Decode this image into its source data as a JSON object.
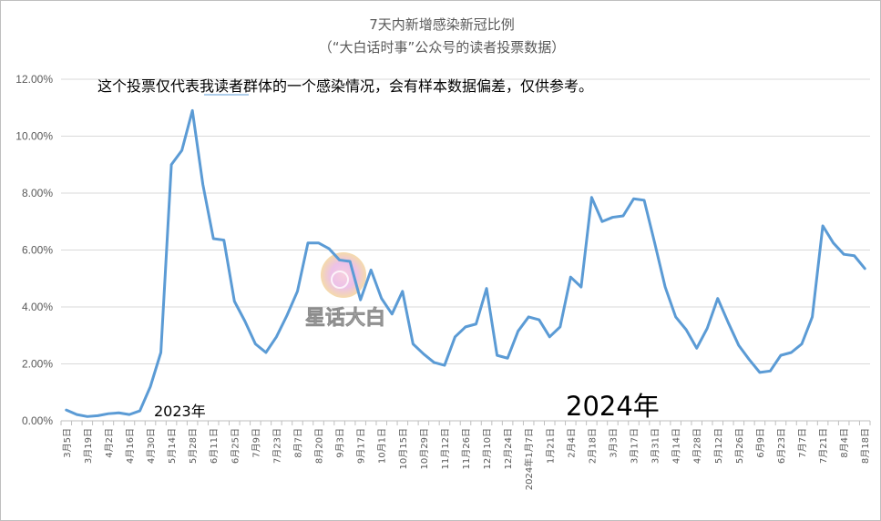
{
  "chart_data": {
    "type": "line",
    "title": "7天内新增感染新冠比例",
    "subtitle": "（“大白话时事”公众号的读者投票数据）",
    "annotation": "这个投票仅代表我读者群体的一个感染情况，会有样本数据偏差，仅供参考。",
    "year_labels": [
      "2023年",
      "2024年"
    ],
    "watermark": "星话大白",
    "ylim": [
      0,
      12
    ],
    "y_ticks": [
      0,
      2,
      4,
      6,
      8,
      10,
      12
    ],
    "y_tick_labels": [
      "0.00%",
      "2.00%",
      "4.00%",
      "6.00%",
      "8.00%",
      "10.00%",
      "12.00%"
    ],
    "grid": true,
    "x_tick_labels": [
      "3月5日",
      "3月19日",
      "4月2日",
      "4月16日",
      "4月30日",
      "5月14日",
      "5月28日",
      "6月11日",
      "6月25日",
      "7月9日",
      "7月23日",
      "8月7日",
      "8月20日",
      "9月3日",
      "9月17日",
      "10月1日",
      "10月15日",
      "10月29日",
      "11月12日",
      "11月26日",
      "12月10日",
      "12月24日",
      "2024年1月7日",
      "1月21日",
      "2月4日",
      "2月18日",
      "3月3日",
      "3月17日",
      "3月31日",
      "4月14日",
      "4月28日",
      "5月12日",
      "5月26日",
      "6月9日",
      "6月23日",
      "7月7日",
      "7月21日",
      "8月4日",
      "8月18日"
    ],
    "series": [
      {
        "color": "#5b9bd5",
        "values": [
          0.38,
          0.22,
          0.15,
          0.18,
          0.25,
          0.28,
          0.22,
          0.35,
          1.2,
          2.4,
          9.0,
          9.5,
          10.9,
          8.3,
          6.4,
          6.35,
          4.2,
          3.5,
          2.7,
          2.4,
          2.95,
          3.7,
          4.55,
          6.25,
          6.25,
          6.05,
          5.65,
          5.6,
          4.25,
          5.3,
          4.3,
          3.75,
          4.55,
          2.7,
          2.35,
          2.05,
          1.95,
          2.95,
          3.3,
          3.4,
          4.65,
          2.3,
          2.2,
          3.15,
          3.65,
          3.55,
          2.95,
          3.3,
          5.05,
          4.7,
          7.85,
          7.0,
          7.15,
          7.2,
          7.8,
          7.75,
          6.25,
          4.7,
          3.65,
          3.2,
          2.55,
          3.25,
          4.3,
          3.45,
          2.65,
          2.15,
          1.7,
          1.75,
          2.3,
          2.4,
          2.7,
          3.65,
          6.85,
          6.25,
          5.85,
          5.8,
          5.35
        ]
      }
    ]
  }
}
